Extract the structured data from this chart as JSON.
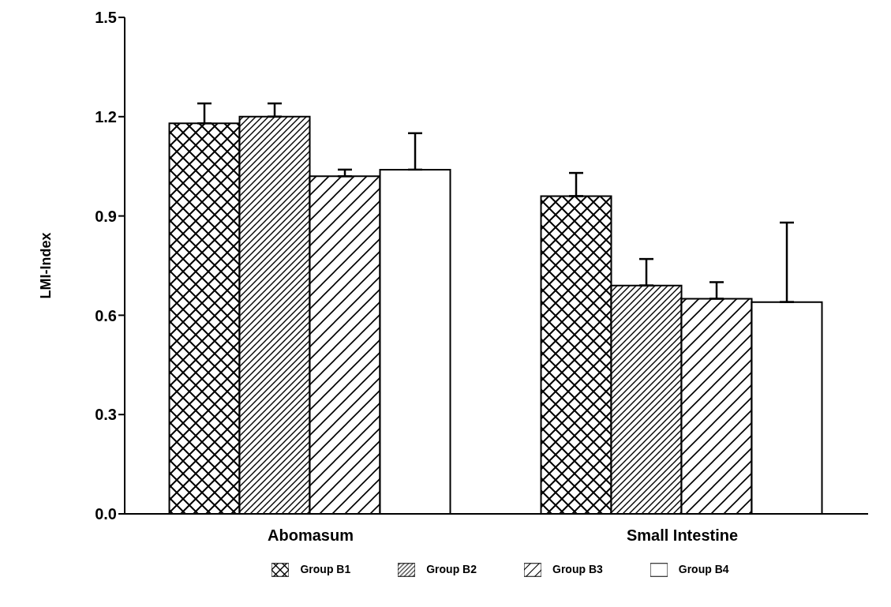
{
  "chart_data": {
    "type": "bar",
    "ylabel": "LMI-Index",
    "categories": [
      "Abomasum",
      "Small Intestine"
    ],
    "series": [
      {
        "name": "Group B1",
        "color": "#000000",
        "values": [
          1.18,
          0.96
        ],
        "errors": [
          [
            1.18,
            1.24
          ],
          [
            0.96,
            1.03
          ]
        ]
      },
      {
        "name": "Group B2",
        "color": "#000000",
        "values": [
          1.2,
          0.69
        ],
        "errors": [
          [
            1.2,
            1.24
          ],
          [
            0.69,
            0.77
          ]
        ]
      },
      {
        "name": "Group B3",
        "color": "#000000",
        "values": [
          1.02,
          0.65
        ],
        "errors": [
          [
            1.02,
            1.04
          ],
          [
            0.65,
            0.7
          ]
        ]
      },
      {
        "name": "Group B4",
        "color": "#000000",
        "values": [
          1.04,
          0.64
        ],
        "errors": [
          [
            1.04,
            1.15
          ],
          [
            0.64,
            0.88
          ]
        ]
      }
    ],
    "ylim": [
      0,
      1.5
    ],
    "yticks": [
      {
        "value": 0,
        "label": "0.0"
      },
      0.3,
      0.6,
      0.9,
      1.2,
      1.5
    ],
    "grid": false,
    "legend": "bottom"
  }
}
